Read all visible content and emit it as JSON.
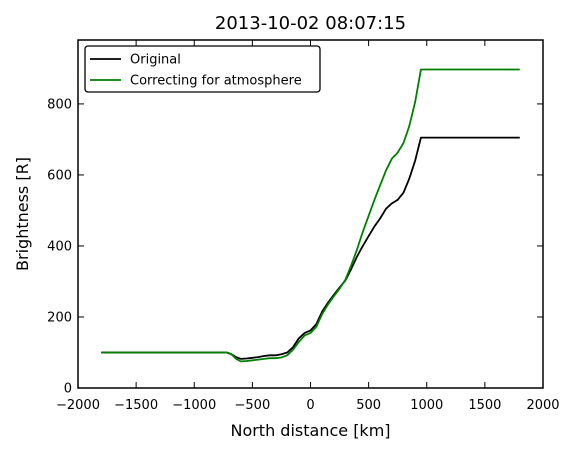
{
  "chart_data": {
    "type": "line",
    "title": "2013-10-02 08:07:15",
    "xlabel": "North distance [km]",
    "ylabel": "Brightness [R]",
    "xlim": [
      -2000,
      2000
    ],
    "ylim": [
      0,
      980
    ],
    "xticks": [
      -2000,
      -1500,
      -1000,
      -500,
      0,
      500,
      1000,
      1500,
      2000
    ],
    "xtick_labels": [
      "−2000",
      "−1500",
      "−1000",
      "−500",
      "0",
      "500",
      "1000",
      "1500",
      "2000"
    ],
    "yticks": [
      0,
      200,
      400,
      600,
      800
    ],
    "ytick_labels": [
      "0",
      "200",
      "400",
      "600",
      "800"
    ],
    "grid": false,
    "legend_position": "top-left",
    "series": [
      {
        "name": "Original",
        "color": "#000000",
        "x": [
          -1800,
          -1500,
          -1000,
          -800,
          -720,
          -680,
          -640,
          -600,
          -550,
          -500,
          -450,
          -400,
          -350,
          -300,
          -250,
          -200,
          -150,
          -100,
          -50,
          0,
          50,
          100,
          150,
          200,
          250,
          300,
          350,
          400,
          450,
          500,
          550,
          600,
          650,
          700,
          750,
          800,
          850,
          900,
          950,
          1000,
          1100,
          1300,
          1500,
          1800
        ],
        "y": [
          100,
          100,
          100,
          100,
          100,
          95,
          87,
          82,
          83,
          85,
          87,
          90,
          92,
          92,
          95,
          100,
          115,
          140,
          155,
          162,
          180,
          215,
          240,
          262,
          283,
          303,
          335,
          370,
          400,
          428,
          455,
          478,
          505,
          520,
          530,
          550,
          590,
          640,
          705,
          705,
          705,
          705,
          705,
          705
        ]
      },
      {
        "name": "Correcting for atmosphere",
        "color": "#008000",
        "x": [
          -1800,
          -1500,
          -1000,
          -800,
          -720,
          -680,
          -640,
          -600,
          -550,
          -500,
          -450,
          -400,
          -350,
          -300,
          -250,
          -200,
          -150,
          -100,
          -50,
          0,
          50,
          100,
          150,
          200,
          250,
          300,
          350,
          400,
          450,
          500,
          550,
          600,
          650,
          700,
          750,
          800,
          850,
          900,
          950,
          1000,
          1100,
          1300,
          1500,
          1800
        ],
        "y": [
          100,
          100,
          100,
          100,
          100,
          95,
          82,
          75,
          76,
          78,
          80,
          82,
          84,
          84,
          86,
          92,
          108,
          130,
          148,
          155,
          172,
          208,
          235,
          258,
          280,
          305,
          345,
          390,
          440,
          485,
          530,
          572,
          613,
          646,
          663,
          690,
          738,
          805,
          897,
          897,
          897,
          897,
          897,
          897
        ]
      }
    ]
  }
}
